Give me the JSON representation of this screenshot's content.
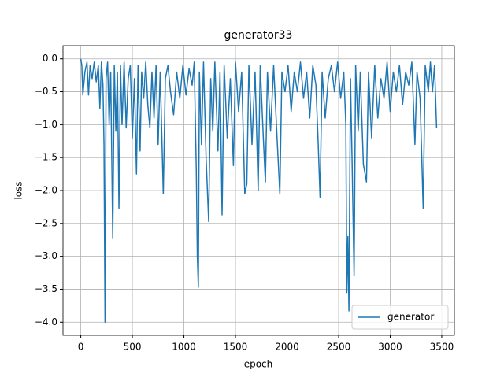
{
  "chart_data": {
    "type": "line",
    "title": "generator33",
    "x_label": "epoch",
    "y_label": "loss",
    "x": [
      0,
      10,
      20,
      40,
      60,
      75,
      90,
      110,
      130,
      150,
      170,
      185,
      200,
      215,
      225,
      235,
      245,
      260,
      275,
      290,
      310,
      325,
      340,
      355,
      370,
      385,
      400,
      420,
      440,
      460,
      480,
      500,
      520,
      540,
      555,
      575,
      590,
      610,
      630,
      650,
      670,
      690,
      710,
      730,
      750,
      770,
      800,
      820,
      845,
      870,
      900,
      930,
      960,
      990,
      1020,
      1050,
      1080,
      1100,
      1120,
      1130,
      1140,
      1150,
      1170,
      1190,
      1215,
      1240,
      1260,
      1280,
      1300,
      1330,
      1350,
      1370,
      1390,
      1420,
      1450,
      1480,
      1500,
      1530,
      1560,
      1590,
      1610,
      1630,
      1660,
      1690,
      1720,
      1740,
      1770,
      1790,
      1810,
      1840,
      1870,
      1900,
      1930,
      1950,
      1980,
      2010,
      2040,
      2070,
      2100,
      2130,
      2160,
      2190,
      2220,
      2250,
      2280,
      2300,
      2320,
      2340,
      2370,
      2400,
      2430,
      2460,
      2490,
      2520,
      2550,
      2570,
      2580,
      2590,
      2600,
      2615,
      2630,
      2650,
      2665,
      2690,
      2710,
      2740,
      2770,
      2790,
      2820,
      2850,
      2880,
      2910,
      2940,
      2970,
      3000,
      3030,
      3060,
      3090,
      3120,
      3150,
      3180,
      3210,
      3240,
      3260,
      3290,
      3320,
      3340,
      3370,
      3390,
      3410,
      3430,
      3450
    ],
    "series": [
      {
        "name": "generator",
        "color": "#1f77b4",
        "values": [
          0,
          -0.1,
          -0.55,
          -0.2,
          -0.05,
          -0.55,
          -0.1,
          -0.3,
          -0.05,
          -0.35,
          -0.1,
          -0.75,
          -0.05,
          -0.4,
          -1.3,
          -4.0,
          -0.3,
          -0.05,
          -1.0,
          -0.2,
          -2.72,
          -0.1,
          -1.1,
          -0.2,
          -2.27,
          -0.1,
          -1.0,
          -0.05,
          -1.05,
          -0.3,
          -0.1,
          -1.2,
          -0.3,
          -1.75,
          -0.1,
          -1.4,
          -0.2,
          -0.6,
          -0.05,
          -0.7,
          -1.05,
          -0.2,
          -0.9,
          -0.1,
          -1.3,
          -0.2,
          -2.05,
          -0.3,
          -0.1,
          -0.5,
          -0.85,
          -0.2,
          -0.6,
          -0.1,
          -0.55,
          -0.15,
          -0.4,
          -0.05,
          -1.7,
          -3.0,
          -3.47,
          -0.2,
          -1.3,
          -0.05,
          -1.5,
          -2.47,
          -0.3,
          -1.1,
          -0.05,
          -1.4,
          -0.2,
          -2.37,
          -0.1,
          -1.2,
          -0.3,
          -1.62,
          -0.05,
          -0.8,
          -0.2,
          -2.05,
          -1.9,
          -0.1,
          -1.3,
          -0.2,
          -2.0,
          -0.1,
          -1.2,
          -1.87,
          -0.2,
          -1.1,
          -0.1,
          -1.1,
          -2.05,
          -0.2,
          -0.5,
          -0.1,
          -0.8,
          -0.2,
          -0.5,
          -0.05,
          -0.6,
          -0.2,
          -0.9,
          -0.1,
          -0.4,
          -1.2,
          -2.1,
          -0.2,
          -0.9,
          -0.3,
          -0.1,
          -0.5,
          -0.05,
          -0.6,
          -0.2,
          -1.0,
          -3.55,
          -2.7,
          -3.83,
          -0.3,
          -1.5,
          -3.3,
          -0.1,
          -1.1,
          -0.2,
          -1.6,
          -1.87,
          -0.2,
          -1.2,
          -0.1,
          -0.9,
          -0.3,
          -0.6,
          -0.05,
          -0.8,
          -0.2,
          -0.5,
          -0.1,
          -0.7,
          -0.2,
          -0.4,
          -0.05,
          -1.3,
          -0.2,
          -0.6,
          -2.27,
          -0.1,
          -0.5,
          -0.05,
          -0.5,
          -0.1,
          -1.05
        ]
      }
    ],
    "xlim": [
      -172.5,
      3622.5
    ],
    "ylim": [
      -4.2,
      0.2
    ],
    "xticks": [
      0,
      500,
      1000,
      1500,
      2000,
      2500,
      3000,
      3500
    ],
    "yticks": [
      {
        "value": 0,
        "label": "0.0"
      },
      {
        "value": -0.5,
        "label": "−0.5"
      },
      {
        "value": -1,
        "label": "−1.0"
      },
      {
        "value": -1.5,
        "label": "−1.5"
      },
      {
        "value": -2,
        "label": "−2.0"
      },
      {
        "value": -2.5,
        "label": "−2.5"
      },
      {
        "value": -3,
        "label": "−3.0"
      },
      {
        "value": -3.5,
        "label": "−3.5"
      },
      {
        "value": -4,
        "label": "−4.0"
      }
    ],
    "grid": true,
    "legend": "lower right"
  }
}
